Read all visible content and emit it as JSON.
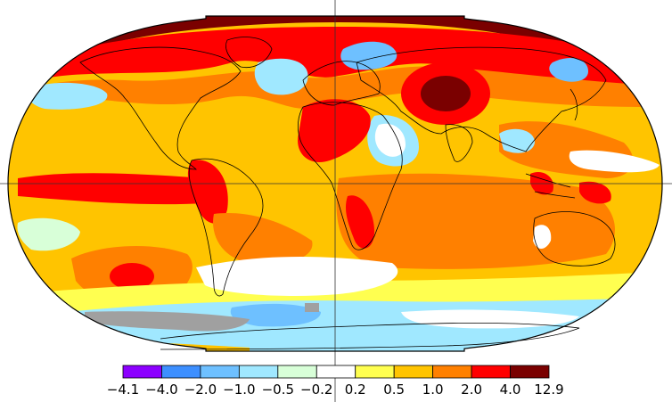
{
  "map": {
    "projection": "robinson",
    "missing_color": "#a0a0a0"
  },
  "legend": {
    "colors": [
      "#8c00ff",
      "#3d8fff",
      "#6ec0ff",
      "#a0e8ff",
      "#d8ffd8",
      "#ffffff",
      "#ffff50",
      "#ffc400",
      "#ff8000",
      "#ff0000",
      "#7a0000"
    ],
    "tick_labels": [
      "−4.1",
      "−4.0",
      "−2.0",
      "−1.0",
      "−0.5",
      "−0.2",
      "0.2",
      "0.5",
      "1.0",
      "2.0",
      "4.0",
      "12.9"
    ]
  }
}
